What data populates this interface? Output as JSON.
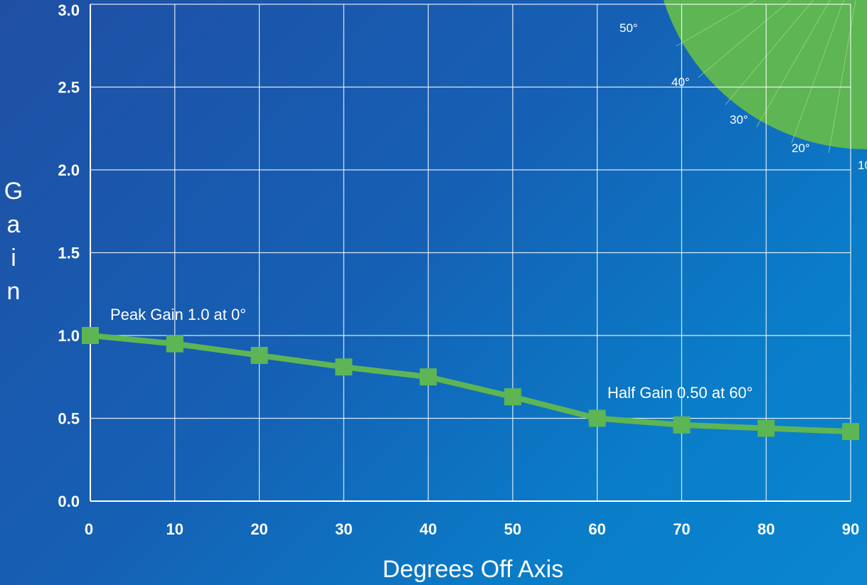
{
  "chart_data": {
    "type": "line",
    "title": "",
    "xlabel": "Degrees Off Axis",
    "ylabel": "Gain",
    "xlim": [
      0,
      90
    ],
    "ylim": [
      0.0,
      3.0
    ],
    "x_ticks": [
      "0",
      "10",
      "20",
      "30",
      "40",
      "50",
      "60",
      "70",
      "80",
      "90"
    ],
    "y_ticks": [
      "0.0",
      "0.5",
      "1.0",
      "1.5",
      "2.0",
      "2.5",
      "3.0"
    ],
    "grid": true,
    "series": [
      {
        "x": [
          0,
          10,
          20,
          30,
          40,
          50,
          60,
          70,
          80,
          90
        ],
        "values": [
          1.0,
          0.95,
          0.88,
          0.81,
          0.75,
          0.63,
          0.5,
          0.46,
          0.44,
          0.42
        ],
        "color": "#5db553"
      }
    ],
    "annotations": [
      {
        "text": "Peak Gain 1.0 at 0°"
      },
      {
        "text": "Half Gain 0.50 at 60°"
      }
    ],
    "polar_inset_labels": [
      "50°",
      "40°",
      "30°",
      "20°",
      "10"
    ]
  },
  "colors": {
    "line": "#5db553",
    "grid": "#ffffff",
    "polar_fill": "#5db553"
  }
}
